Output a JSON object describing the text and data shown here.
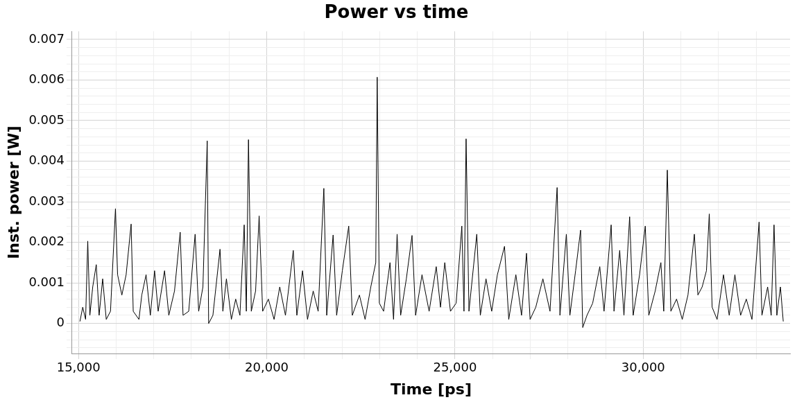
{
  "chart_data": {
    "type": "line",
    "title": "Power vs time",
    "xlabel": "Time [ps]",
    "ylabel": "Inst. power [W]",
    "xlim": [
      14830,
      33900
    ],
    "ylim": [
      -0.00074,
      0.0072
    ],
    "xticks": [
      {
        "value": 15000,
        "label": "15,000"
      },
      {
        "value": 16000,
        "label": null
      },
      {
        "value": 17000,
        "label": null
      },
      {
        "value": 18000,
        "label": null
      },
      {
        "value": 19000,
        "label": null
      },
      {
        "value": 20000,
        "label": "20,000"
      },
      {
        "value": 21000,
        "label": null
      },
      {
        "value": 22000,
        "label": null
      },
      {
        "value": 23000,
        "label": null
      },
      {
        "value": 24000,
        "label": null
      },
      {
        "value": 25000,
        "label": "25,000"
      },
      {
        "value": 26000,
        "label": null
      },
      {
        "value": 27000,
        "label": null
      },
      {
        "value": 28000,
        "label": null
      },
      {
        "value": 29000,
        "label": null
      },
      {
        "value": 30000,
        "label": "30,000"
      },
      {
        "value": 31000,
        "label": null
      },
      {
        "value": 32000,
        "label": null
      },
      {
        "value": 33000,
        "label": null
      }
    ],
    "yticks": [
      {
        "value": -0.0006,
        "label": null
      },
      {
        "value": -0.0004,
        "label": null
      },
      {
        "value": -0.0002,
        "label": null
      },
      0,
      {
        "value": 0.0002,
        "label": null
      },
      {
        "value": 0.0004,
        "label": null
      },
      {
        "value": 0.0006,
        "label": null
      },
      {
        "value": 0.0008,
        "label": null
      },
      0.001,
      {
        "value": 0.0012,
        "label": null
      },
      {
        "value": 0.0014,
        "label": null
      },
      {
        "value": 0.0016,
        "label": null
      },
      {
        "value": 0.0018,
        "label": null
      },
      0.002,
      {
        "value": 0.0022,
        "label": null
      },
      {
        "value": 0.0024,
        "label": null
      },
      {
        "value": 0.0026,
        "label": null
      },
      {
        "value": 0.0028,
        "label": null
      },
      0.003,
      {
        "value": 0.0032,
        "label": null
      },
      {
        "value": 0.0034,
        "label": null
      },
      {
        "value": 0.0036,
        "label": null
      },
      {
        "value": 0.0038,
        "label": null
      },
      0.004,
      {
        "value": 0.0042,
        "label": null
      },
      {
        "value": 0.0044,
        "label": null
      },
      {
        "value": 0.0046,
        "label": null
      },
      {
        "value": 0.0048,
        "label": null
      },
      0.005,
      {
        "value": 0.0052,
        "label": null
      },
      {
        "value": 0.0054,
        "label": null
      },
      {
        "value": 0.0056,
        "label": null
      },
      {
        "value": 0.0058,
        "label": null
      },
      0.006,
      {
        "value": 0.0062,
        "label": null
      },
      {
        "value": 0.0064,
        "label": null
      },
      {
        "value": 0.0066,
        "label": null
      },
      {
        "value": 0.0068,
        "label": null
      },
      0.007
    ],
    "grid": true,
    "marker": "none",
    "line_style": "solid",
    "series": [
      {
        "color": "#000000",
        "x": [
          15038,
          15113,
          15189,
          15246,
          15302,
          15378,
          15472,
          15548,
          15642,
          15737,
          15850,
          15982,
          16039,
          16152,
          16265,
          16398,
          16454,
          16606,
          16681,
          16795,
          16908,
          17021,
          17116,
          17286,
          17399,
          17550,
          17701,
          17777,
          17928,
          18098,
          18192,
          18305,
          18419,
          18457,
          18570,
          18759,
          18835,
          18929,
          19061,
          19175,
          19288,
          19401,
          19458,
          19515,
          19590,
          19704,
          19798,
          19892,
          20043,
          20195,
          20346,
          20497,
          20705,
          20800,
          20951,
          21083,
          21234,
          21366,
          21517,
          21593,
          21763,
          21857,
          22008,
          22178,
          22273,
          22462,
          22613,
          22764,
          22896,
          22934,
          22991,
          23104,
          23274,
          23368,
          23463,
          23557,
          23708,
          23859,
          23954,
          24124,
          24313,
          24502,
          24615,
          24729,
          24880,
          25031,
          25182,
          25239,
          25295,
          25371,
          25579,
          25673,
          25824,
          25975,
          26126,
          26315,
          26428,
          26617,
          26768,
          26900,
          26995,
          27146,
          27335,
          27524,
          27713,
          27788,
          27958,
          28052,
          28204,
          28336,
          28393,
          28506,
          28657,
          28846,
          28959,
          29148,
          29224,
          29375,
          29488,
          29639,
          29733,
          29903,
          30054,
          30148,
          30318,
          30469,
          30545,
          30640,
          30734,
          30885,
          31037,
          31188,
          31358,
          31452,
          31565,
          31679,
          31754,
          31830,
          31962,
          32132,
          32284,
          32435,
          32586,
          32737,
          32888,
          33077,
          33153,
          33304,
          33398,
          33474,
          33549,
          33644,
          33719
        ],
        "values": [
          5e-05,
          0.0004,
          0.0001,
          0.00203,
          0.0002,
          0.0009,
          0.00145,
          0.0002,
          0.0011,
          0.0001,
          0.0003,
          0.00283,
          0.0012,
          0.0007,
          0.0012,
          0.00245,
          0.0003,
          0.0001,
          0.0007,
          0.0012,
          0.0002,
          0.0013,
          0.0003,
          0.0013,
          0.0002,
          0.0008,
          0.00225,
          0.0002,
          0.0003,
          0.0022,
          0.0003,
          0.0009,
          0.0045,
          0.0,
          0.0002,
          0.00183,
          0.0003,
          0.0011,
          0.0001,
          0.0006,
          0.0002,
          0.00243,
          0.0003,
          0.00453,
          0.0003,
          0.0008,
          0.00265,
          0.0003,
          0.0006,
          0.0001,
          0.0009,
          0.0002,
          0.0018,
          0.0002,
          0.0013,
          0.0001,
          0.0008,
          0.0003,
          0.00333,
          0.0002,
          0.00218,
          0.0002,
          0.0013,
          0.0024,
          0.0002,
          0.0007,
          0.0001,
          0.0009,
          0.0015,
          0.00607,
          0.0005,
          0.0003,
          0.0015,
          0.0001,
          0.0022,
          0.0002,
          0.0011,
          0.00217,
          0.0002,
          0.0012,
          0.0003,
          0.0014,
          0.0004,
          0.0015,
          0.0003,
          0.0005,
          0.0024,
          0.0003,
          0.00455,
          0.0003,
          0.0022,
          0.0002,
          0.0011,
          0.0003,
          0.0012,
          0.0019,
          0.0001,
          0.0012,
          0.0002,
          0.00173,
          0.0001,
          0.0004,
          0.0011,
          0.0003,
          0.00335,
          0.0002,
          0.0022,
          0.0002,
          0.0013,
          0.0023,
          -0.0001,
          0.0002,
          0.0005,
          0.0014,
          0.0003,
          0.00243,
          0.0003,
          0.0018,
          0.0002,
          0.00263,
          0.0002,
          0.0012,
          0.0024,
          0.0002,
          0.0008,
          0.0015,
          0.0003,
          0.00378,
          0.0003,
          0.0006,
          0.0001,
          0.0007,
          0.0022,
          0.0007,
          0.0009,
          0.0013,
          0.0027,
          0.0004,
          0.0001,
          0.0012,
          0.0002,
          0.0012,
          0.0002,
          0.0006,
          0.0001,
          0.0025,
          0.0002,
          0.0009,
          0.0002,
          0.00243,
          0.0002,
          0.0009,
          5e-05
        ]
      }
    ]
  }
}
